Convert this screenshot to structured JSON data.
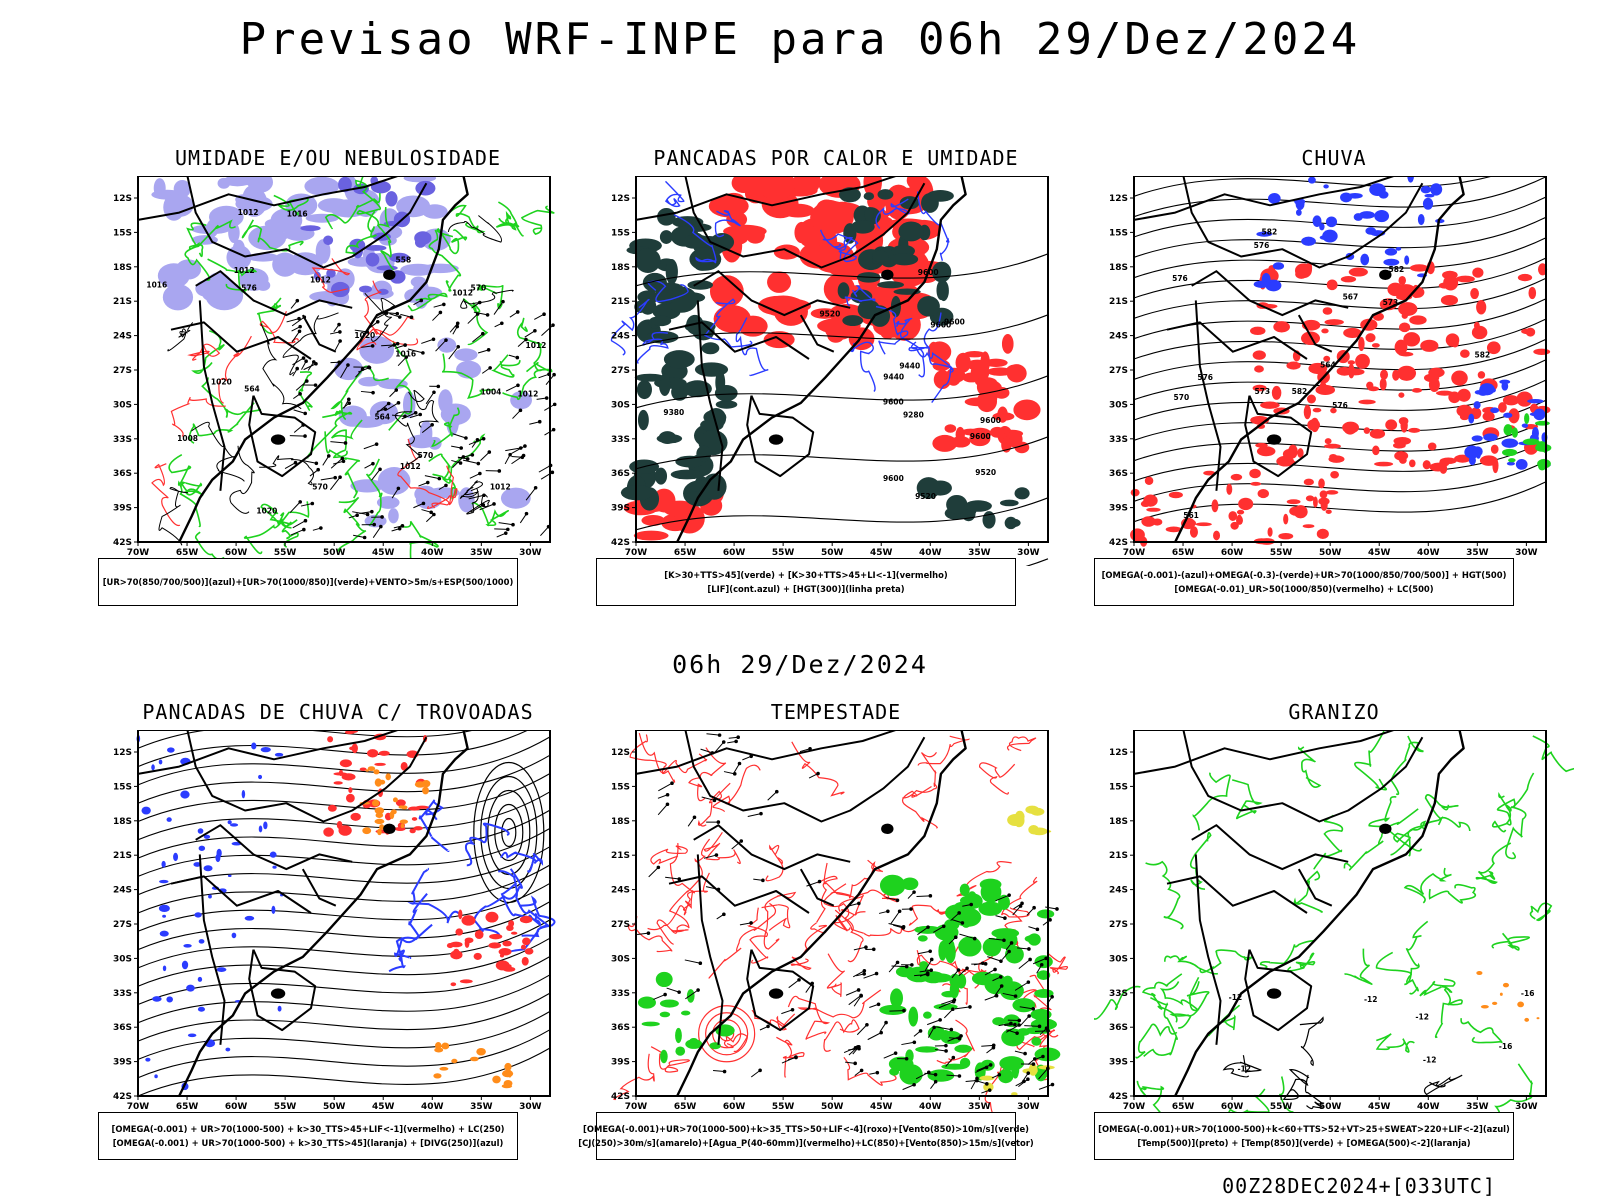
{
  "header": {
    "title": "Previsao WRF-INPE  para 06h 29/Dez/2024"
  },
  "middle_title": "06h 29/Dez/2024",
  "footer": "00Z28DEC2024+[033UTC]",
  "axis": {
    "lat_labels": [
      "12S",
      "15S",
      "18S",
      "21S",
      "24S",
      "27S",
      "30S",
      "33S",
      "36S",
      "39S",
      "42S"
    ],
    "lon_labels": [
      "70W",
      "65W",
      "60W",
      "55W",
      "50W",
      "45W",
      "40W",
      "35W",
      "30W"
    ]
  },
  "colors": {
    "blue": "#2b3cff",
    "green": "#1ed21e",
    "red": "#ff3030",
    "dark": "#1f3d3a",
    "orange": "#ff8c1a",
    "yellow": "#e6e040",
    "lavender": "#a9a6f0"
  },
  "panels": [
    {
      "title": "UMIDADE E/OU NEBULOSIDADE",
      "legend": [
        "[UR>70(850/700/500)](azul)+[UR>70(1000/850)](verde)+VENTO>5m/s+ESP(500/1000)"
      ],
      "labels": [
        "1012",
        "1012",
        "1012",
        "1012",
        "1012",
        "1020",
        "1020",
        "1012",
        "1012",
        "1016",
        "1016",
        "1012",
        "1008",
        "1004",
        "1016",
        "1020",
        "570",
        "570",
        "576",
        "564",
        "564",
        "558",
        "570"
      ]
    },
    {
      "title": "PANCADAS POR CALOR E UMIDADE",
      "legend": [
        "[K>30+TTS>45](verde) + [K>30+TTS>45+LI<-1](vermelho)",
        "[LIF](cont.azul) + [HGT(300)](linha preta)"
      ],
      "labels": [
        "9600",
        "9600",
        "9600",
        "9600",
        "9600",
        "9600",
        "9600",
        "9520",
        "9520",
        "9520",
        "9440",
        "9440",
        "9380",
        "9280"
      ]
    },
    {
      "title": "CHUVA",
      "legend": [
        "[OMEGA(-0.001)-(azul)+OMEGA(-0.3)-(verde)+UR>70(1000/850/700/500)] + HGT(500)",
        "[OMEGA(-0.01)_UR>50(1000/850)(vermelho) + LC(500)"
      ],
      "labels": [
        "582",
        "582",
        "582",
        "582",
        "576",
        "576",
        "576",
        "573",
        "570",
        "567",
        "564",
        "561",
        "576",
        "573"
      ]
    },
    {
      "title": "PANCADAS DE CHUVA C/ TROVOADAS",
      "legend": [
        "[OMEGA(-0.001) + UR>70(1000-500) + k>30_TTS>45+LIF<-1](vermelho) + LC(250)",
        "[OMEGA(-0.001) + UR>70(1000-500) + k>30_TTS>45](laranja) + [DIVG(250)](azul)"
      ],
      "labels": []
    },
    {
      "title": "TEMPESTADE",
      "legend": [
        "[OMEGA(-0.001)+UR>70(1000-500)+k>35_TTS>50+LIF<-4](roxo)+[Vento(850)>10m/s](verde)",
        "[CJ(250)>30m/s](amarelo)+[Agua_P(40-60mm)](vermelho)+LC(850)+[Vento(850)>15m/s](vetor)"
      ],
      "labels": []
    },
    {
      "title": "GRANIZO",
      "legend": [
        "[OMEGA(-0.001)+UR>70(1000-500)+k<60+TTS>52+VT>25+SWEAT>220+LIF<-2](azul)",
        "[Temp(500)](preto) + [Temp(850)](verde) + [OMEGA(500)<-2](laranja)"
      ],
      "labels": [
        "-12",
        "-12",
        "-12",
        "-16",
        "-16",
        "-12",
        "-12"
      ]
    }
  ]
}
